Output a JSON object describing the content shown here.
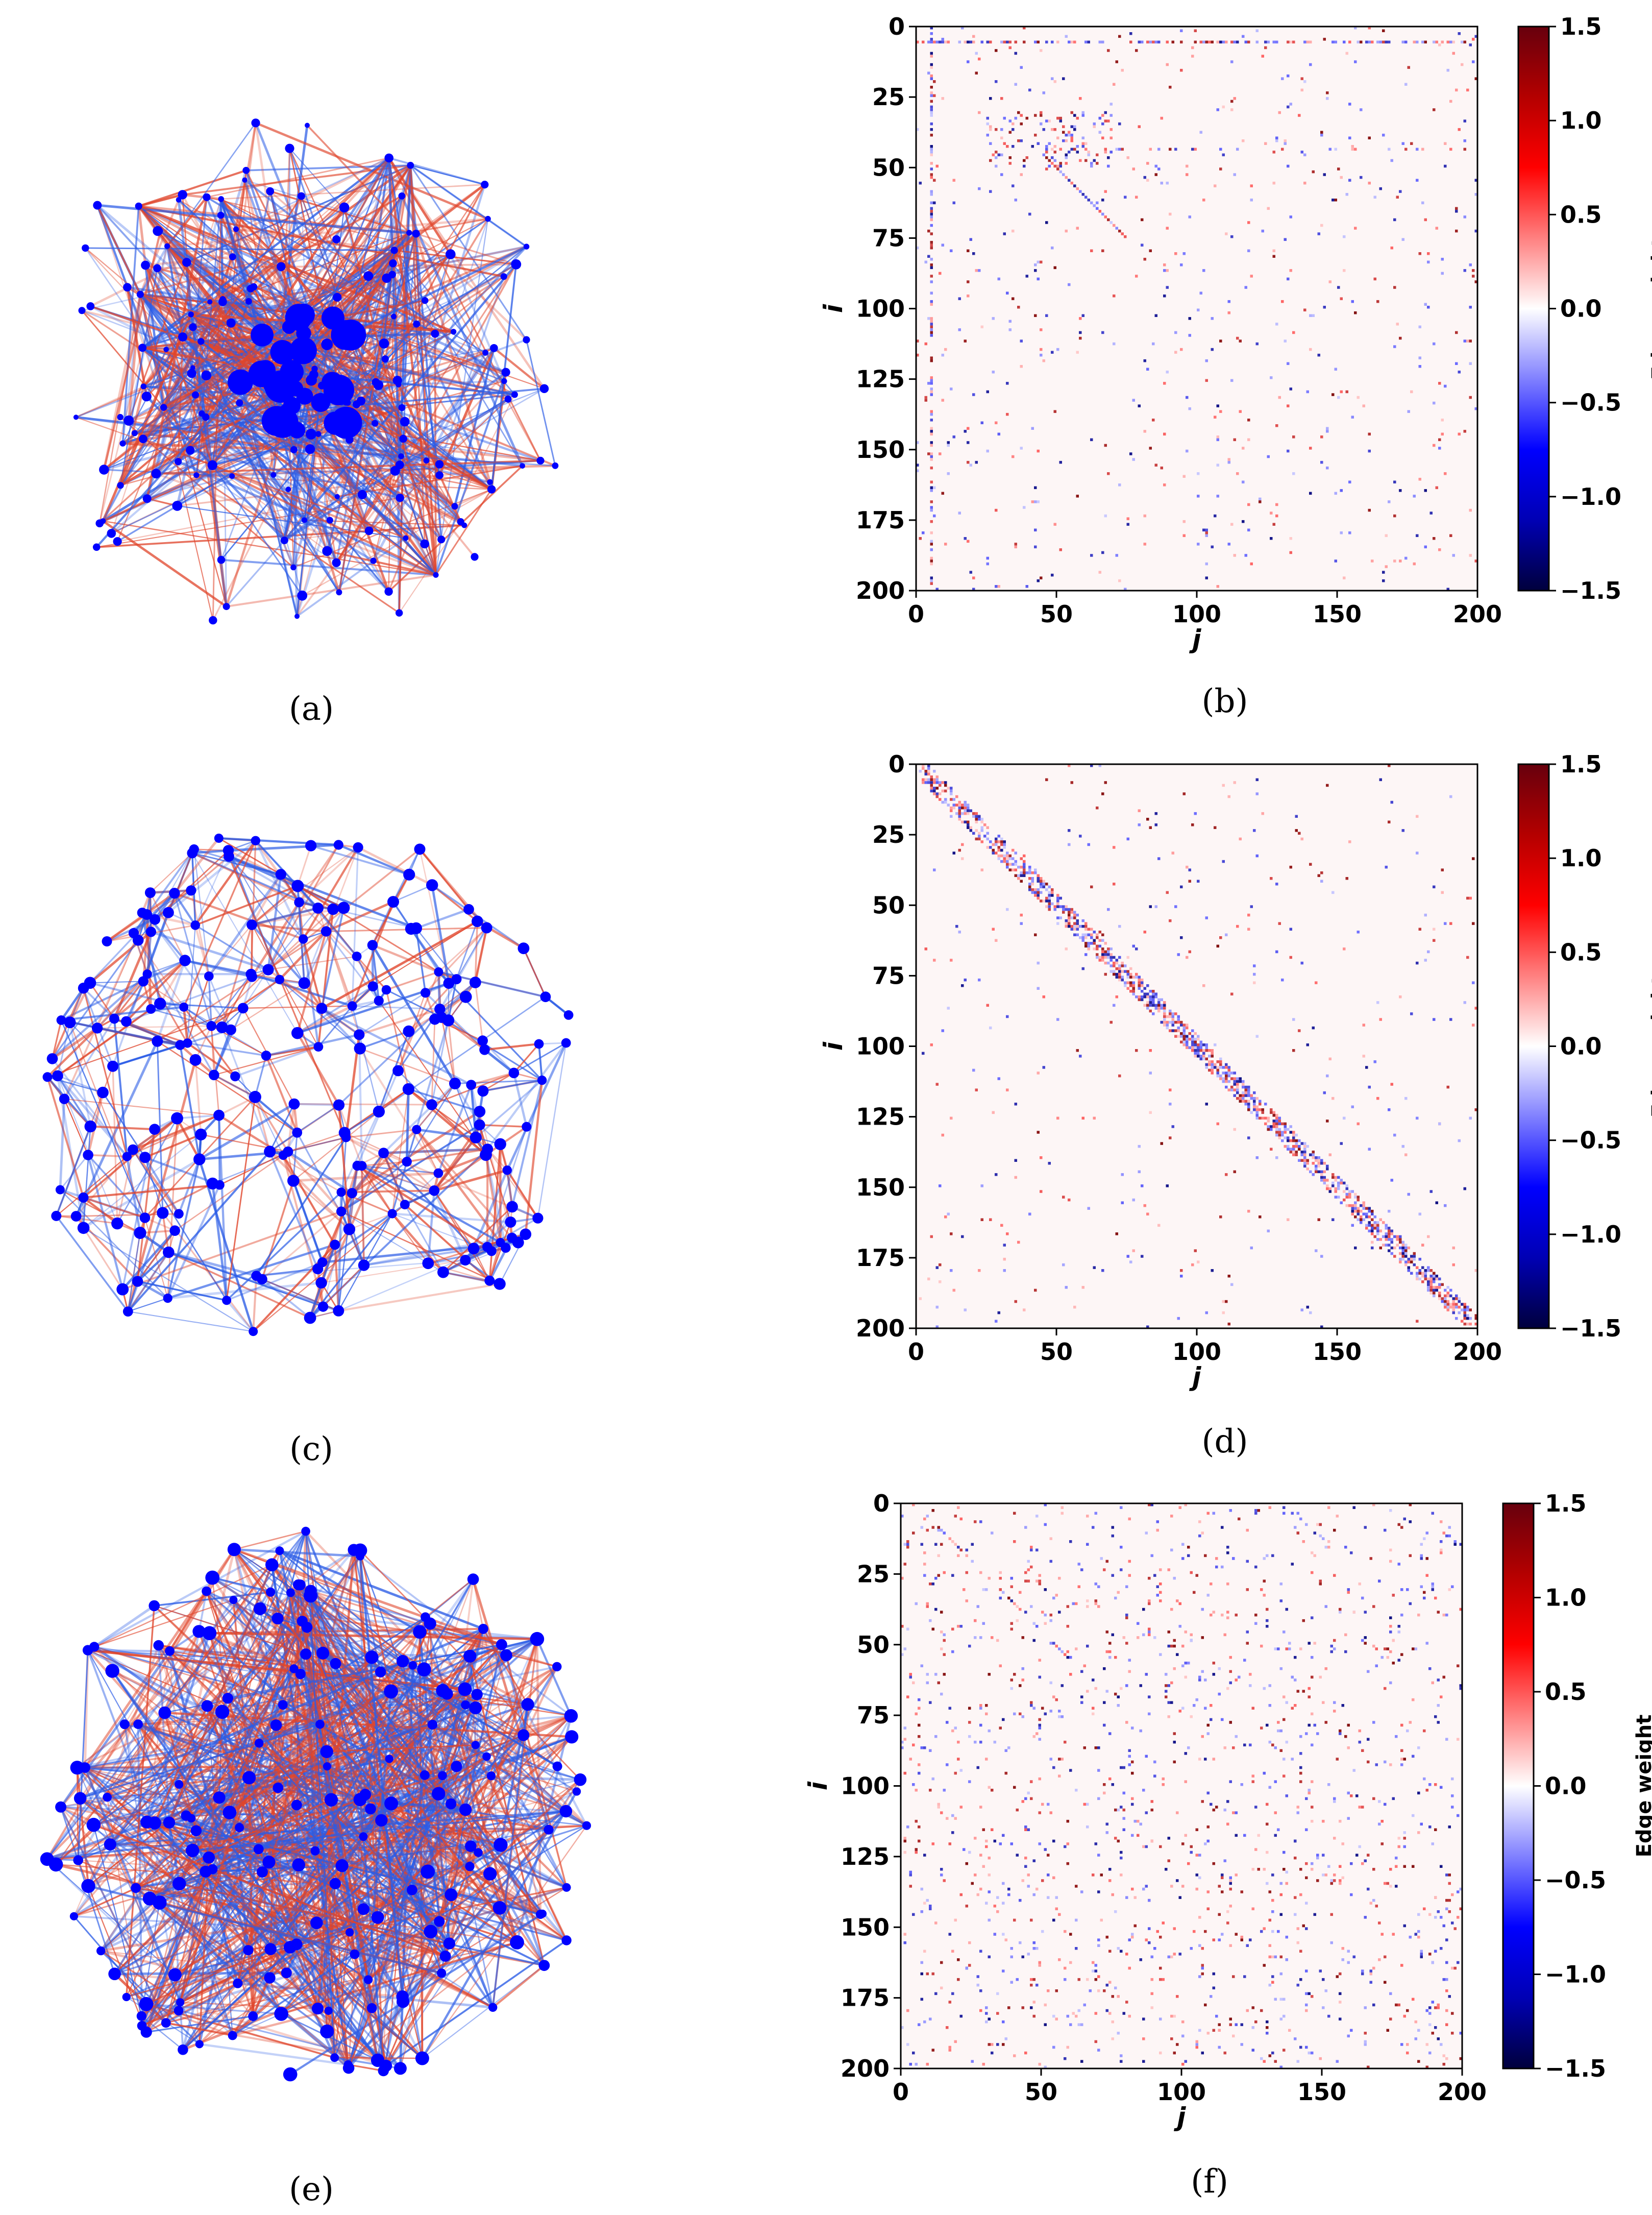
{
  "figure": {
    "colors": {
      "node": "#0000ff",
      "edge_neg": "#2b5ce6",
      "edge_pos": "#e0452b",
      "frame": "#000000"
    },
    "colorbar_stops": [
      "#67000d",
      "#b40000",
      "#ff0000",
      "#ff8080",
      "#ffffff",
      "#8080ff",
      "#0000ff",
      "#0000b4",
      "#00003c"
    ]
  },
  "panels": [
    {
      "id": "a",
      "caption": "(a)",
      "kind": "network",
      "layout": "hub",
      "node_count": 200
    },
    {
      "id": "b",
      "caption": "(b)",
      "kind": "adjacency",
      "pattern": "hub"
    },
    {
      "id": "c",
      "caption": "(c)",
      "kind": "network",
      "layout": "lattice",
      "node_count": 200
    },
    {
      "id": "d",
      "caption": "(d)",
      "kind": "adjacency",
      "pattern": "band"
    },
    {
      "id": "e",
      "caption": "(e)",
      "kind": "network",
      "layout": "random",
      "node_count": 200
    },
    {
      "id": "f",
      "caption": "(f)",
      "kind": "adjacency",
      "pattern": "random"
    }
  ],
  "chart_data": [
    {
      "type": "heatmap",
      "panel": "b",
      "title": "",
      "xlabel": "j",
      "ylabel": "i",
      "xlim": [
        0,
        200
      ],
      "ylim": [
        200,
        0
      ],
      "xticks": [
        0,
        50,
        100,
        150,
        200
      ],
      "yticks": [
        0,
        25,
        50,
        75,
        100,
        125,
        150,
        175,
        200
      ],
      "colorbar": {
        "label": "Edge weight",
        "range": [
          -1.5,
          1.5
        ],
        "ticks": [
          "1.5",
          "1.0",
          "0.5",
          "0.0",
          "−0.5",
          "−1.0",
          "−1.5"
        ]
      },
      "structure": "hub rows/columns near i,j ≈ 5 and 45–70, sparse elsewhere"
    },
    {
      "type": "heatmap",
      "panel": "d",
      "title": "",
      "xlabel": "j",
      "ylabel": "i",
      "xlim": [
        0,
        200
      ],
      "ylim": [
        200,
        0
      ],
      "xticks": [
        0,
        50,
        100,
        150,
        200
      ],
      "yticks": [
        0,
        25,
        50,
        75,
        100,
        125,
        150,
        175,
        200
      ],
      "colorbar": {
        "label": "Edge weight",
        "range": [
          -1.5,
          1.5
        ],
        "ticks": [
          "1.5",
          "1.0",
          "0.5",
          "0.0",
          "−0.5",
          "−1.0",
          "−1.5"
        ]
      },
      "structure": "dense band along the main diagonal with sparse off-diagonal entries"
    },
    {
      "type": "heatmap",
      "panel": "f",
      "title": "",
      "xlabel": "j",
      "ylabel": "i",
      "xlim": [
        0,
        200
      ],
      "ylim": [
        200,
        0
      ],
      "xticks": [
        0,
        50,
        100,
        150,
        200
      ],
      "yticks": [
        0,
        25,
        50,
        75,
        100,
        125,
        150,
        175,
        200
      ],
      "colorbar": {
        "label": "Edge weight",
        "range": [
          -1.5,
          1.5
        ],
        "ticks": [
          "1.5",
          "1.0",
          "0.5",
          "0.0",
          "−0.5",
          "−1.0",
          "−1.5"
        ]
      },
      "structure": "uniformly scattered entries (random graph)"
    }
  ]
}
